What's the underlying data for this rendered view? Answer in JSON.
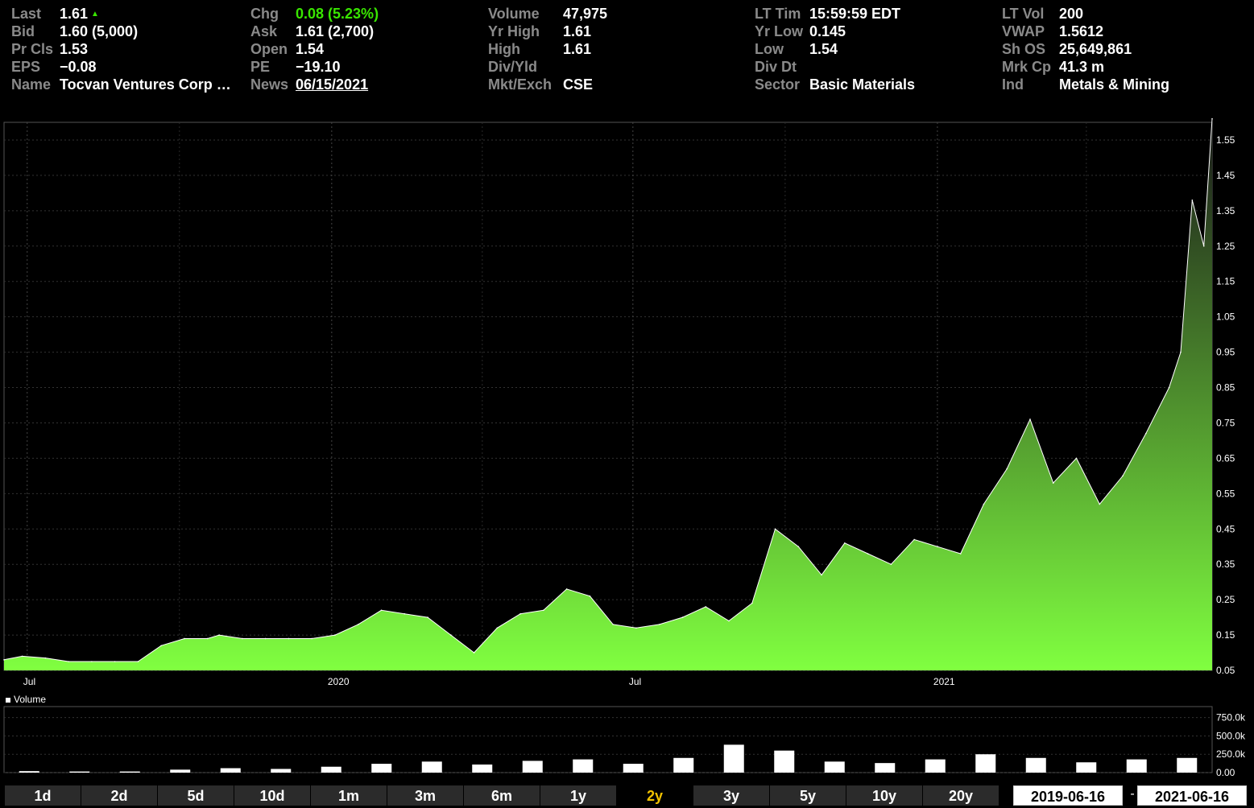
{
  "quote": {
    "last_label": "Last",
    "last": "1.61",
    "bid_label": "Bid",
    "bid": "1.60 (5,000)",
    "prcls_label": "Pr Cls",
    "prcls": "1.53",
    "eps_label": "EPS",
    "eps": "−0.08",
    "name_label": "Name",
    "name": "Tocvan Ventures Corp …",
    "chg_label": "Chg",
    "chg": "0.08 (5.23%)",
    "ask_label": "Ask",
    "ask": "1.61 (2,700)",
    "open_label": "Open",
    "open": "1.54",
    "pe_label": "PE",
    "pe": "−19.10",
    "news_label": "News",
    "news": "06/15/2021",
    "volume_label": "Volume",
    "volume": "47,975",
    "yrhigh_label": "Yr High",
    "yrhigh": "1.61",
    "high_label": "High",
    "high": "1.61",
    "divyld_label": "Div/Yld",
    "divyld": "",
    "mktexch_label": "Mkt/Exch",
    "mktexch": "CSE",
    "lttim_label": "LT Tim",
    "lttim": "15:59:59 EDT",
    "yrlow_label": "Yr Low",
    "yrlow": "0.145",
    "low_label": "Low",
    "low": "1.54",
    "divdt_label": "Div Dt",
    "divdt": "",
    "sector_label": "Sector",
    "sector": "Basic Materials",
    "ltvol_label": "LT Vol",
    "ltvol": "200",
    "vwap_label": "VWAP",
    "vwap": "1.5612",
    "shos_label": "Sh OS",
    "shos": "25,649,861",
    "mrkcp_label": "Mrk Cp",
    "mrkcp": "41.3 m",
    "ind_label": "Ind",
    "ind": "Metals & Mining"
  },
  "colors": {
    "up": "#39e600",
    "area_top": "#1a1a1a",
    "area_bottom": "#80ff40",
    "active_range": "#f2c200"
  },
  "icons": {
    "up_arrow": "up-triangle-icon"
  },
  "chart_data": [
    {
      "type": "area",
      "series": [
        {
          "x": [
            "2019-06-17",
            "2019-06-28",
            "2019-07-12",
            "2019-07-26",
            "2019-08-09",
            "2019-08-23",
            "2019-09-06",
            "2019-09-20",
            "2019-10-04",
            "2019-10-18",
            "2019-10-25",
            "2019-11-08",
            "2019-11-22",
            "2019-12-06",
            "2019-12-20",
            "2020-01-03",
            "2020-01-17",
            "2020-01-31",
            "2020-02-14",
            "2020-02-28",
            "2020-03-13",
            "2020-03-27",
            "2020-04-10",
            "2020-04-24",
            "2020-05-08",
            "2020-05-22",
            "2020-06-05",
            "2020-06-19",
            "2020-07-03",
            "2020-07-17",
            "2020-07-31",
            "2020-08-14",
            "2020-08-28",
            "2020-09-11",
            "2020-09-25",
            "2020-10-09",
            "2020-10-23",
            "2020-11-06",
            "2020-11-20",
            "2020-12-04",
            "2020-12-18",
            "2021-01-01",
            "2021-01-15",
            "2021-01-29",
            "2021-02-12",
            "2021-02-26",
            "2021-03-12",
            "2021-03-26",
            "2021-04-09",
            "2021-04-23",
            "2021-05-07",
            "2021-05-21",
            "2021-05-28",
            "2021-06-04",
            "2021-06-11",
            "2021-06-16"
          ],
          "values": [
            0.08,
            0.09,
            0.085,
            0.075,
            0.075,
            0.075,
            0.075,
            0.12,
            0.14,
            0.14,
            0.15,
            0.14,
            0.14,
            0.14,
            0.14,
            0.15,
            0.18,
            0.22,
            0.21,
            0.2,
            0.15,
            0.1,
            0.17,
            0.21,
            0.22,
            0.28,
            0.26,
            0.18,
            0.17,
            0.18,
            0.2,
            0.23,
            0.19,
            0.24,
            0.45,
            0.4,
            0.32,
            0.41,
            0.38,
            0.35,
            0.42,
            0.4,
            0.38,
            0.52,
            0.62,
            0.76,
            0.58,
            0.65,
            0.52,
            0.6,
            0.72,
            0.85,
            0.95,
            1.38,
            1.25,
            1.61
          ]
        }
      ],
      "ylim": [
        0.05,
        1.6
      ],
      "yticks": [
        "0.05",
        "0.15",
        "0.25",
        "0.35",
        "0.45",
        "0.55",
        "0.65",
        "0.75",
        "0.85",
        "0.95",
        "1.05",
        "1.15",
        "1.25",
        "1.35",
        "1.45",
        "1.55"
      ],
      "xticks": [
        "Jul",
        "2020",
        "Jul",
        "2021"
      ],
      "grid": true
    },
    {
      "type": "bar",
      "title": "Volume",
      "yticks": [
        "0.00",
        "250.0k",
        "500.0k",
        "750.0k"
      ],
      "ylim": [
        0,
        900000
      ],
      "series": [
        {
          "name": "Volume",
          "x": [
            "2019-07",
            "2019-08",
            "2019-09",
            "2019-10",
            "2019-11",
            "2019-12",
            "2020-01",
            "2020-02",
            "2020-03",
            "2020-04",
            "2020-05",
            "2020-06",
            "2020-07",
            "2020-08",
            "2020-09",
            "2020-10",
            "2020-11",
            "2020-12",
            "2021-01",
            "2021-02",
            "2021-03",
            "2021-04",
            "2021-05",
            "2021-06"
          ],
          "values": [
            20000,
            15000,
            15000,
            40000,
            60000,
            50000,
            80000,
            120000,
            150000,
            110000,
            160000,
            180000,
            120000,
            200000,
            380000,
            300000,
            150000,
            130000,
            180000,
            250000,
            200000,
            140000,
            180000,
            200000
          ]
        }
      ]
    }
  ],
  "ranges": [
    "1d",
    "2d",
    "5d",
    "10d",
    "1m",
    "3m",
    "6m",
    "1y",
    "2y",
    "3y",
    "5y",
    "10y",
    "20y"
  ],
  "active_range": "2y",
  "date_from": "2019-06-16",
  "date_to": "2021-06-16",
  "date_sep": "-"
}
